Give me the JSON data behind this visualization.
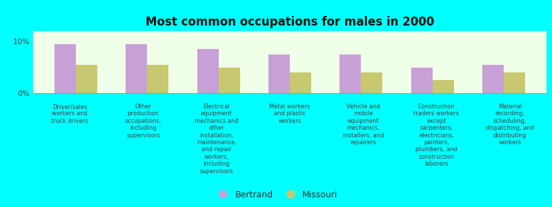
{
  "title": "Most common occupations for males in 2000",
  "background_color": "#00FFFF",
  "plot_bg_color": "#F0FFE8",
  "bar_color_bertrand": "#C8A0D8",
  "bar_color_missouri": "#C8C870",
  "categories": [
    "Driver/sales\nworkers and\ntruck drivers",
    "Other\nproduction\noccupations,\nincluding\nsupervisors",
    "Electrical\nequipment\nmechanics and\nother\ninstallation,\nmaintenance,\nand repair\nworkers,\nincluding\nsupervisors",
    "Metal workers\nand plastic\nworkers",
    "Vehicle and\nmobile\nequipment\nmechanics,\ninstallers, and\nrepairers",
    "Construction\ntraders workers\nexcept\ncarpenters,\nelectricians,\npainters,\nplumbers, and\nconstruction\nlaborers",
    "Material\nrecording,\nscheduling,\ndispatching, and\ndistributing\nworkers"
  ],
  "bertrand_values": [
    9.5,
    9.5,
    8.5,
    7.5,
    7.5,
    5.0,
    5.5
  ],
  "missouri_values": [
    5.5,
    5.5,
    5.0,
    4.0,
    4.0,
    2.5,
    4.0
  ],
  "ylim": [
    0,
    12
  ],
  "ytick_labels": [
    "0%",
    "10%"
  ],
  "label_fontsize": 6.0,
  "title_fontsize": 12,
  "legend_labels": [
    "Bertrand",
    "Missouri"
  ]
}
